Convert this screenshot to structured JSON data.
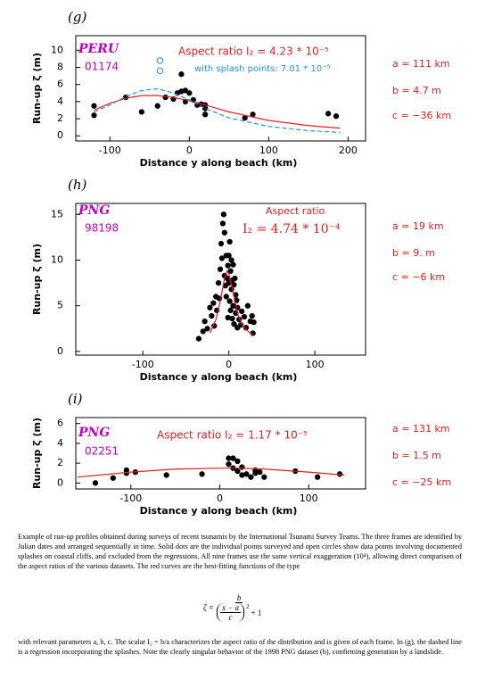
{
  "chart_data": [
    {
      "type": "scatter",
      "panel_label": "(g)",
      "site": "PERU",
      "date": "01174",
      "aspect_ratio": "Aspect ratio I₂ = 4.23 * 10⁻⁵",
      "splash_ratio": "with splash points: 7.01 * 10⁻⁵",
      "parameters": [
        "a = 111 km",
        "b = 4.7 m",
        "c = −36 km"
      ],
      "x_label": "Distance y along beach  (km)",
      "y_label": "Run-up ζ (m)",
      "xlim": [
        -143,
        222
      ],
      "ylim": [
        -0.6,
        11.7
      ],
      "xticks": [
        -100,
        0,
        100,
        200
      ],
      "yticks": [
        0,
        2,
        4,
        6,
        8,
        10
      ],
      "grid": false,
      "series": [
        {
          "color": "#000000",
          "marker": "dot",
          "x": [
            -120,
            -120,
            -80,
            -60,
            -40,
            -30,
            -20,
            -15,
            -10,
            -10,
            -5,
            0,
            -5,
            5,
            10,
            15,
            20,
            20,
            20,
            70,
            80,
            175,
            185
          ],
          "values": [
            3.5,
            2.4,
            4.5,
            2.8,
            3.5,
            4.5,
            4.3,
            5,
            7.2,
            5.2,
            5.3,
            5,
            4,
            4.2,
            3.6,
            3.7,
            2.5,
            3.2,
            3.6,
            2.1,
            2.5,
            2.6,
            2.3
          ]
        },
        {
          "color": "#3399dd",
          "marker": "open",
          "x": [
            -37,
            -37
          ],
          "values": [
            8.8,
            7.6
          ]
        },
        {
          "color": "#e02020",
          "marker": "line",
          "x": [
            -120,
            -100,
            -80,
            -60,
            -40,
            -20,
            0,
            20,
            50,
            100,
            150,
            190
          ],
          "values": [
            3.0,
            3.8,
            4.4,
            4.7,
            4.7,
            4.5,
            4.1,
            3.6,
            2.8,
            1.8,
            1.2,
            0.9
          ]
        },
        {
          "color": "#1e90ff",
          "marker": "dashed",
          "x": [
            -120,
            -100,
            -80,
            -60,
            -40,
            -20,
            0,
            20,
            50,
            100,
            150,
            190
          ],
          "values": [
            2.8,
            3.6,
            4.6,
            5.3,
            5.5,
            5.0,
            4.2,
            3.2,
            2.1,
            1.1,
            0.6,
            0.4
          ]
        }
      ]
    },
    {
      "type": "scatter",
      "panel_label": "(h)",
      "site": "PNG",
      "date": "98198",
      "aspect_ratio": [
        "Aspect ratio",
        "I₂ = 4.74 * 10⁻⁴"
      ],
      "parameters": [
        "a = 19 km",
        "b = 9. m",
        "c = −6 km"
      ],
      "x_label": "Distance y along beach  (km)",
      "y_label": "Run-up ζ (m)",
      "xlim": [
        -178,
        159
      ],
      "ylim": [
        -0.4,
        16.2
      ],
      "xticks": [
        -100,
        0,
        100
      ],
      "yticks": [
        0,
        5,
        10,
        15
      ],
      "grid": false,
      "series": [
        {
          "color": "#000000",
          "marker": "dot",
          "x": [
            -35,
            -30,
            -28,
            -25,
            -22,
            -20,
            -18,
            -15,
            -14,
            -12,
            -10,
            -9,
            -8,
            -7,
            -6,
            -5,
            -5,
            -4,
            -3,
            -3,
            -2,
            -1,
            0,
            0,
            1,
            1,
            2,
            2,
            3,
            3,
            4,
            4,
            5,
            5,
            6,
            6,
            7,
            8,
            8,
            10,
            10,
            12,
            14,
            15,
            18,
            20,
            22,
            25,
            27,
            28,
            29,
            -17,
            -11,
            -1,
            9
          ],
          "values": [
            1.4,
            2.2,
            3.3,
            2.5,
            4.8,
            3.9,
            5.3,
            6.0,
            4.5,
            7.5,
            9.0,
            11.8,
            10.2,
            14.0,
            15.0,
            13.0,
            8.3,
            7.2,
            10.5,
            6.0,
            8.0,
            9.4,
            10.5,
            7.5,
            5.5,
            12.0,
            8.8,
            4.5,
            10.0,
            6.8,
            7.8,
            3.6,
            9.5,
            5.0,
            7.3,
            3.0,
            8.0,
            4.2,
            6.2,
            4.8,
            2.6,
            3.5,
            2.9,
            4.4,
            3.8,
            2.6,
            5.0,
            3.3,
            3.9,
            2.0,
            3.2,
            2.8,
            5.8,
            3.7,
            5.6
          ]
        },
        {
          "color": "#e02020",
          "marker": "line",
          "x": [
            -22,
            -15,
            -10,
            -5,
            -2,
            0,
            5,
            10,
            15,
            20,
            28
          ],
          "values": [
            2.0,
            3.5,
            5.5,
            8.0,
            8.8,
            8.5,
            6.5,
            4.2,
            3.0,
            2.4,
            1.8
          ]
        }
      ]
    },
    {
      "type": "scatter",
      "panel_label": "(i)",
      "site": "PNG",
      "date": "02251",
      "aspect_ratio": "Aspect ratio I₂ = 1.17 * 10⁻⁵",
      "parameters": [
        "a = 131 km",
        "b = 1.5 m",
        "c = −25 km"
      ],
      "x_label": "Distance y along beach  (km)",
      "y_label": "Run-up ζ (m)",
      "xlim": [
        -162,
        164
      ],
      "ylim": [
        -0.6,
        6.6
      ],
      "xticks": [
        -100,
        0,
        100
      ],
      "yticks": [
        0,
        2,
        4,
        6
      ],
      "grid": false,
      "series": [
        {
          "color": "#000000",
          "marker": "dot",
          "x": [
            -140,
            -120,
            -105,
            -105,
            -95,
            -60,
            -20,
            10,
            10,
            15,
            15,
            20,
            20,
            25,
            25,
            30,
            35,
            40,
            40,
            45,
            50,
            85,
            110,
            135
          ],
          "values": [
            0,
            0.5,
            1,
            1.3,
            1.1,
            0.8,
            0.9,
            2.5,
            1.9,
            2.5,
            1.5,
            2.2,
            1.2,
            0.8,
            1.6,
            0.9,
            0.6,
            1.3,
            1.0,
            1.1,
            0.6,
            1.2,
            0.6,
            0.9
          ]
        },
        {
          "color": "#e02020",
          "marker": "line",
          "x": [
            -160,
            -100,
            -50,
            0,
            20,
            50,
            100,
            140
          ],
          "values": [
            0.6,
            1.1,
            1.4,
            1.5,
            1.5,
            1.4,
            1.1,
            0.8
          ]
        }
      ]
    }
  ],
  "caption": {
    "paragraph1": "Example of run-up profiles obtained during surveys of recent tsunamis by the International Tsunami Survey Teams. The three frames are identified by Julian dates and arranged sequentially in time. Solid dots are the individual points surveyed and open circles show data points involving documented splashes on coastal cliffs, and excluded from the regressions. All nine frames use the same vertical exaggeration (10⁴), allowing direct comparison of the aspect ratios of the various datasets. The red curves are the best-fitting functions of the type",
    "equation": {
      "lhs": "ζ =",
      "numerator": "b",
      "inner_numerator": "x − a",
      "inner_denominator": "c",
      "exponent": "2",
      "plus": "+ 1"
    },
    "paragraph2": "with relevant parameters a, b, c. The scalar I₂ = b/a characterizes the aspect ratio of the distribution and is given of each frame. In (g), the dashed line is a regression incorporating the splashes. Note the clearly singular behavior of the 1998 PNG dataset (h), confirming generation by a landslide."
  }
}
